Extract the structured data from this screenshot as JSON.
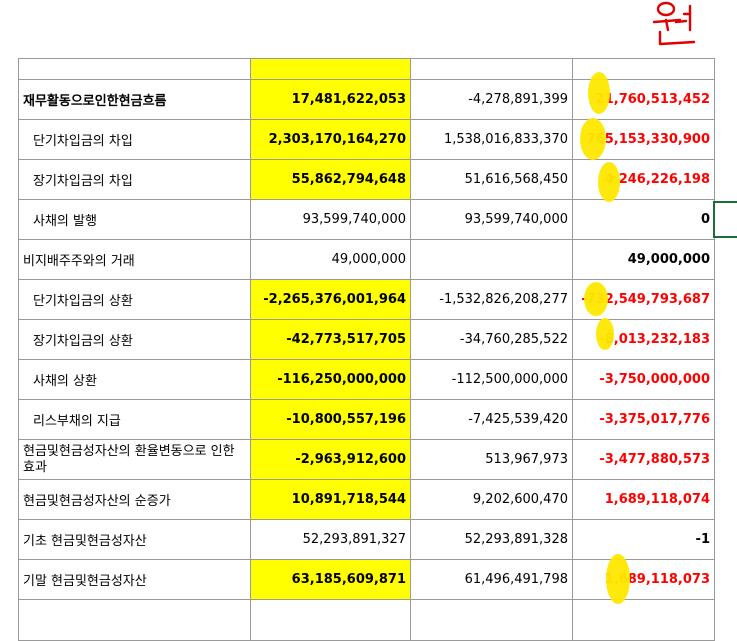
{
  "rows": [
    {
      "label": "재무활동으로인한현금흐름",
      "v1": "17,481,622,053",
      "v2": "-4,278,891,399",
      "v3": "21,760,513,452"
    },
    {
      "label": "단기차입금의 차입",
      "v1": "2,303,170,164,270",
      "v2": "1,538,016,833,370",
      "v3": "765,153,330,900"
    },
    {
      "label": "장기차입금의 차입",
      "v1": "55,862,794,648",
      "v2": "51,616,568,450",
      "v3": "4,246,226,198"
    },
    {
      "label": "사채의 발행",
      "v1": "93,599,740,000",
      "v2": "93,599,740,000",
      "v3": "0"
    },
    {
      "label": "비지배주주와의 거래",
      "v1": "49,000,000",
      "v2": "",
      "v3": "49,000,000"
    },
    {
      "label": "단기차입금의 상환",
      "v1": "-2,265,376,001,964",
      "v2": "-1,532,826,208,277",
      "v3": "-732,549,793,687"
    },
    {
      "label": "장기차입금의 상환",
      "v1": "-42,773,517,705",
      "v2": "-34,760,285,522",
      "v3": "-8,013,232,183"
    },
    {
      "label": "사채의 상환",
      "v1": "-116,250,000,000",
      "v2": "-112,500,000,000",
      "v3": "-3,750,000,000"
    },
    {
      "label": "리스부채의 지급",
      "v1": "-10,800,557,196",
      "v2": "-7,425,539,420",
      "v3": "-3,375,017,776"
    },
    {
      "label": "현금및현금성자산의 환율변동으로 인한 효과",
      "v1": "-2,963,912,600",
      "v2": "513,967,973",
      "v3": "-3,477,880,573"
    },
    {
      "label": "현금및현금성자산의 순증가",
      "v1": "10,891,718,544",
      "v2": "9,202,600,470",
      "v3": "1,689,118,074"
    },
    {
      "label": "기초 현금및현금성자산",
      "v1": "52,293,891,327",
      "v2": "52,293,891,328",
      "v3": "-1"
    },
    {
      "label": "기말 현금및현금성자산",
      "v1": "63,185,609,871",
      "v2": "61,496,491,798",
      "v3": "1,689,118,073"
    }
  ],
  "annotation": "원",
  "colors": {
    "highlight": "#ffff00",
    "negative_diff": "#ff0000",
    "pen": "#e00000",
    "marker": "#ffe800"
  }
}
